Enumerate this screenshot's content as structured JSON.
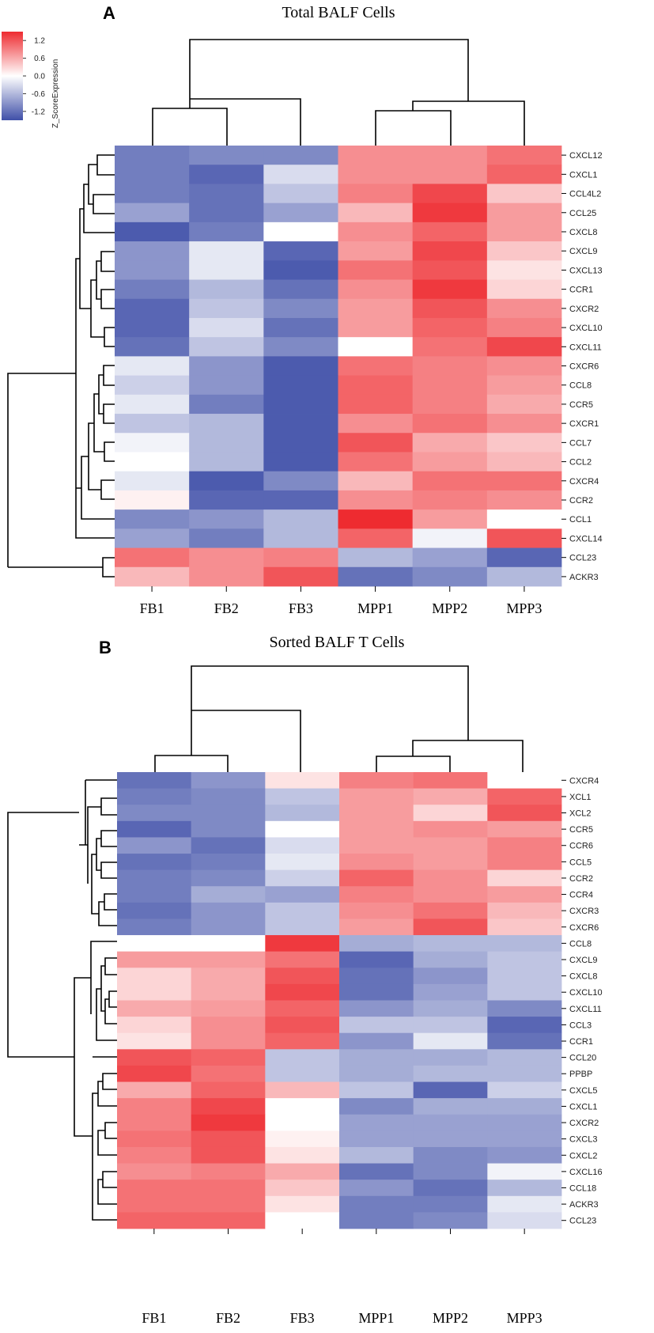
{
  "colors": {
    "low": "#3F4FA8",
    "mid": "#FFFFFF",
    "high": "#EE2B30"
  },
  "legend": {
    "title": "Z_ScoreExpression",
    "ticks": [
      {
        "label": "1.2",
        "value": 1.2
      },
      {
        "label": "0.6",
        "value": 0.6
      },
      {
        "label": "0.0",
        "value": 0.0
      },
      {
        "label": "-0.6",
        "value": -0.6
      },
      {
        "label": "-1.2",
        "value": -1.2
      }
    ],
    "range": [
      -1.5,
      1.5
    ]
  },
  "chart_data": [
    {
      "type": "heatmap",
      "panel": "A",
      "title": "Total BALF Cells",
      "columns": [
        "FB1",
        "FB2",
        "FB3",
        "MPP1",
        "MPP2",
        "MPP3"
      ],
      "rows": [
        "CXCL12",
        "CXCL1",
        "CCL4L2",
        "CCL25",
        "CXCL8",
        "CXCL9",
        "CXCL13",
        "CCR1",
        "CXCR2",
        "CXCL10",
        "CXCL11",
        "CXCR6",
        "CCL8",
        "CCR5",
        "CXCR1",
        "CCL7",
        "CCL2",
        "CXCR4",
        "CCR2",
        "CCL1",
        "CXCL14",
        "CCL23",
        "ACKR3"
      ],
      "values": [
        [
          -1.1,
          -1.0,
          -1.0,
          0.8,
          0.8,
          1.0
        ],
        [
          -1.1,
          -1.3,
          -0.3,
          0.8,
          0.8,
          1.1
        ],
        [
          -1.1,
          -1.2,
          -0.5,
          0.9,
          1.3,
          0.4
        ],
        [
          -0.8,
          -1.2,
          -0.8,
          0.5,
          1.4,
          0.7
        ],
        [
          -1.4,
          -1.1,
          0.0,
          0.8,
          1.1,
          0.7
        ],
        [
          -0.9,
          -0.2,
          -1.3,
          0.7,
          1.3,
          0.4
        ],
        [
          -0.9,
          -0.2,
          -1.4,
          1.0,
          1.2,
          0.2
        ],
        [
          -1.1,
          -0.6,
          -1.2,
          0.8,
          1.4,
          0.3
        ],
        [
          -1.3,
          -0.5,
          -1.0,
          0.7,
          1.2,
          0.8
        ],
        [
          -1.3,
          -0.3,
          -1.2,
          0.7,
          1.1,
          0.9
        ],
        [
          -1.2,
          -0.5,
          -1.0,
          0.0,
          1.0,
          1.3
        ],
        [
          -0.2,
          -0.9,
          -1.4,
          1.0,
          0.9,
          0.8
        ],
        [
          -0.4,
          -0.9,
          -1.4,
          1.1,
          0.9,
          0.7
        ],
        [
          -0.2,
          -1.1,
          -1.4,
          1.1,
          0.9,
          0.6
        ],
        [
          -0.5,
          -0.6,
          -1.4,
          0.8,
          1.0,
          0.8
        ],
        [
          -0.1,
          -0.6,
          -1.4,
          1.2,
          0.6,
          0.4
        ],
        [
          0.0,
          -0.6,
          -1.4,
          1.0,
          0.7,
          0.5
        ],
        [
          -0.2,
          -1.4,
          -1.0,
          0.5,
          1.0,
          1.0
        ],
        [
          0.1,
          -1.3,
          -1.3,
          0.8,
          0.9,
          0.8
        ],
        [
          -1.0,
          -0.9,
          -0.6,
          1.5,
          0.7,
          0.0
        ],
        [
          -0.8,
          -1.1,
          -0.6,
          1.1,
          -0.1,
          1.2
        ],
        [
          1.0,
          0.8,
          0.9,
          -0.6,
          -0.8,
          -1.3
        ],
        [
          0.5,
          0.8,
          1.2,
          -1.2,
          -1.0,
          -0.6
        ]
      ],
      "column_order_note": "FB1, FB2, FB3 cluster vs MPP1, MPP2, MPP3"
    },
    {
      "type": "heatmap",
      "panel": "B",
      "title": "Sorted BALF T Cells",
      "columns": [
        "FB1",
        "FB2",
        "FB3",
        "MPP1",
        "MPP2",
        "MPP3"
      ],
      "rows": [
        "CXCR4",
        "XCL1",
        "XCL2",
        "CCR5",
        "CCR6",
        "CCL5",
        "CCR2",
        "CCR4",
        "CXCR3",
        "CXCR6",
        "CCL8",
        "CXCL9",
        "CXCL8",
        "CXCL10",
        "CXCL11",
        "CCL3",
        "CCR1",
        "CCL20",
        "PPBP",
        "CXCL5",
        "CXCL1",
        "CXCR2",
        "CXCL3",
        "CXCL2",
        "CXCL16",
        "CCL18",
        "ACKR3",
        "CCL23"
      ],
      "values": [
        [
          -1.2,
          -0.9,
          0.2,
          0.9,
          1.0,
          0.0
        ],
        [
          -1.1,
          -1.0,
          -0.5,
          0.7,
          0.6,
          1.1
        ],
        [
          -1.0,
          -1.0,
          -0.6,
          0.7,
          0.3,
          1.2
        ],
        [
          -1.3,
          -1.0,
          0.0,
          0.7,
          0.8,
          0.7
        ],
        [
          -0.9,
          -1.2,
          -0.3,
          0.7,
          0.7,
          0.9
        ],
        [
          -1.2,
          -1.1,
          -0.2,
          0.8,
          0.7,
          0.9
        ],
        [
          -1.1,
          -1.0,
          -0.4,
          1.1,
          0.8,
          0.3
        ],
        [
          -1.1,
          -0.7,
          -0.8,
          0.9,
          0.8,
          0.7
        ],
        [
          -1.2,
          -0.9,
          -0.5,
          0.8,
          1.0,
          0.5
        ],
        [
          -1.1,
          -0.9,
          -0.5,
          0.7,
          1.2,
          0.4
        ],
        [
          0.0,
          0.0,
          1.4,
          -0.7,
          -0.6,
          -0.6
        ],
        [
          0.7,
          0.7,
          1.0,
          -1.3,
          -0.7,
          -0.5
        ],
        [
          0.3,
          0.6,
          1.2,
          -1.2,
          -0.9,
          -0.5
        ],
        [
          0.3,
          0.6,
          1.3,
          -1.2,
          -0.8,
          -0.5
        ],
        [
          0.6,
          0.7,
          1.1,
          -0.9,
          -0.7,
          -1.0
        ],
        [
          0.3,
          0.8,
          1.2,
          -0.5,
          -0.5,
          -1.3
        ],
        [
          0.2,
          0.8,
          1.1,
          -0.9,
          -0.2,
          -1.2
        ],
        [
          1.2,
          1.1,
          -0.5,
          -0.7,
          -0.7,
          -0.6
        ],
        [
          1.3,
          1.0,
          -0.5,
          -0.7,
          -0.6,
          -0.6
        ],
        [
          0.6,
          1.1,
          0.5,
          -0.5,
          -1.3,
          -0.4
        ],
        [
          0.9,
          1.3,
          0.0,
          -1.0,
          -0.7,
          -0.7
        ],
        [
          0.9,
          1.4,
          0.0,
          -0.8,
          -0.8,
          -0.8
        ],
        [
          1.0,
          1.2,
          0.1,
          -0.8,
          -0.8,
          -0.8
        ],
        [
          0.9,
          1.2,
          0.2,
          -0.6,
          -1.0,
          -0.9
        ],
        [
          0.8,
          0.9,
          0.6,
          -1.2,
          -1.0,
          -0.1
        ],
        [
          1.0,
          1.0,
          0.4,
          -0.9,
          -1.2,
          -0.6
        ],
        [
          1.0,
          1.0,
          0.2,
          -1.1,
          -1.1,
          -0.2
        ],
        [
          1.1,
          1.1,
          0.0,
          -1.1,
          -1.0,
          -0.3
        ]
      ]
    }
  ]
}
